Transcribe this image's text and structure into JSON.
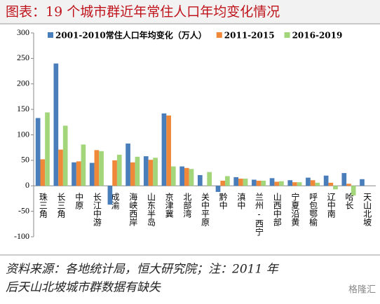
{
  "chart_data": {
    "type": "bar",
    "title": "图表：19 个城市群近年常住人口年均变化情况",
    "categories": [
      "珠三角",
      "长三角",
      "中原",
      "长江中游",
      "成渝",
      "海峡西岸",
      "山东半岛",
      "京津冀",
      "北部湾",
      "关中平原",
      "黔中",
      "滇中",
      "兰州-西宁",
      "山西中部",
      "宁夏沿黄",
      "呼包鄂榆",
      "辽中南",
      "哈长",
      "天山北坡"
    ],
    "series": [
      {
        "name": "2001-2010常住人口年均变化（万人）",
        "color": "#4a7ebb",
        "values": [
          133,
          240,
          46,
          45,
          -37,
          83,
          58,
          142,
          38,
          21,
          -12,
          17,
          12,
          15,
          11,
          16,
          20,
          25,
          13
        ]
      },
      {
        "name": "2011-2015",
        "color": "#f0883a",
        "values": [
          52,
          71,
          48,
          70,
          50,
          46,
          51,
          138,
          35,
          null,
          10,
          14,
          10,
          8,
          7,
          11,
          6,
          4,
          null
        ]
      },
      {
        "name": "2016-2019",
        "color": "#a3d67a",
        "values": [
          144,
          118,
          81,
          68,
          61,
          57,
          55,
          38,
          33,
          27,
          19,
          14,
          10,
          9,
          7,
          6,
          -7,
          -19,
          null
        ]
      }
    ],
    "ylim": [
      -100,
      300
    ],
    "yticks": [
      -100,
      -50,
      0,
      50,
      100,
      150,
      200,
      250,
      300
    ],
    "footer_lines": [
      "资料来源：各地统计局，恒大研究院；注：2011 年",
      "后天山北坡城市群数据有缺失"
    ],
    "watermark": "格隆汇"
  }
}
